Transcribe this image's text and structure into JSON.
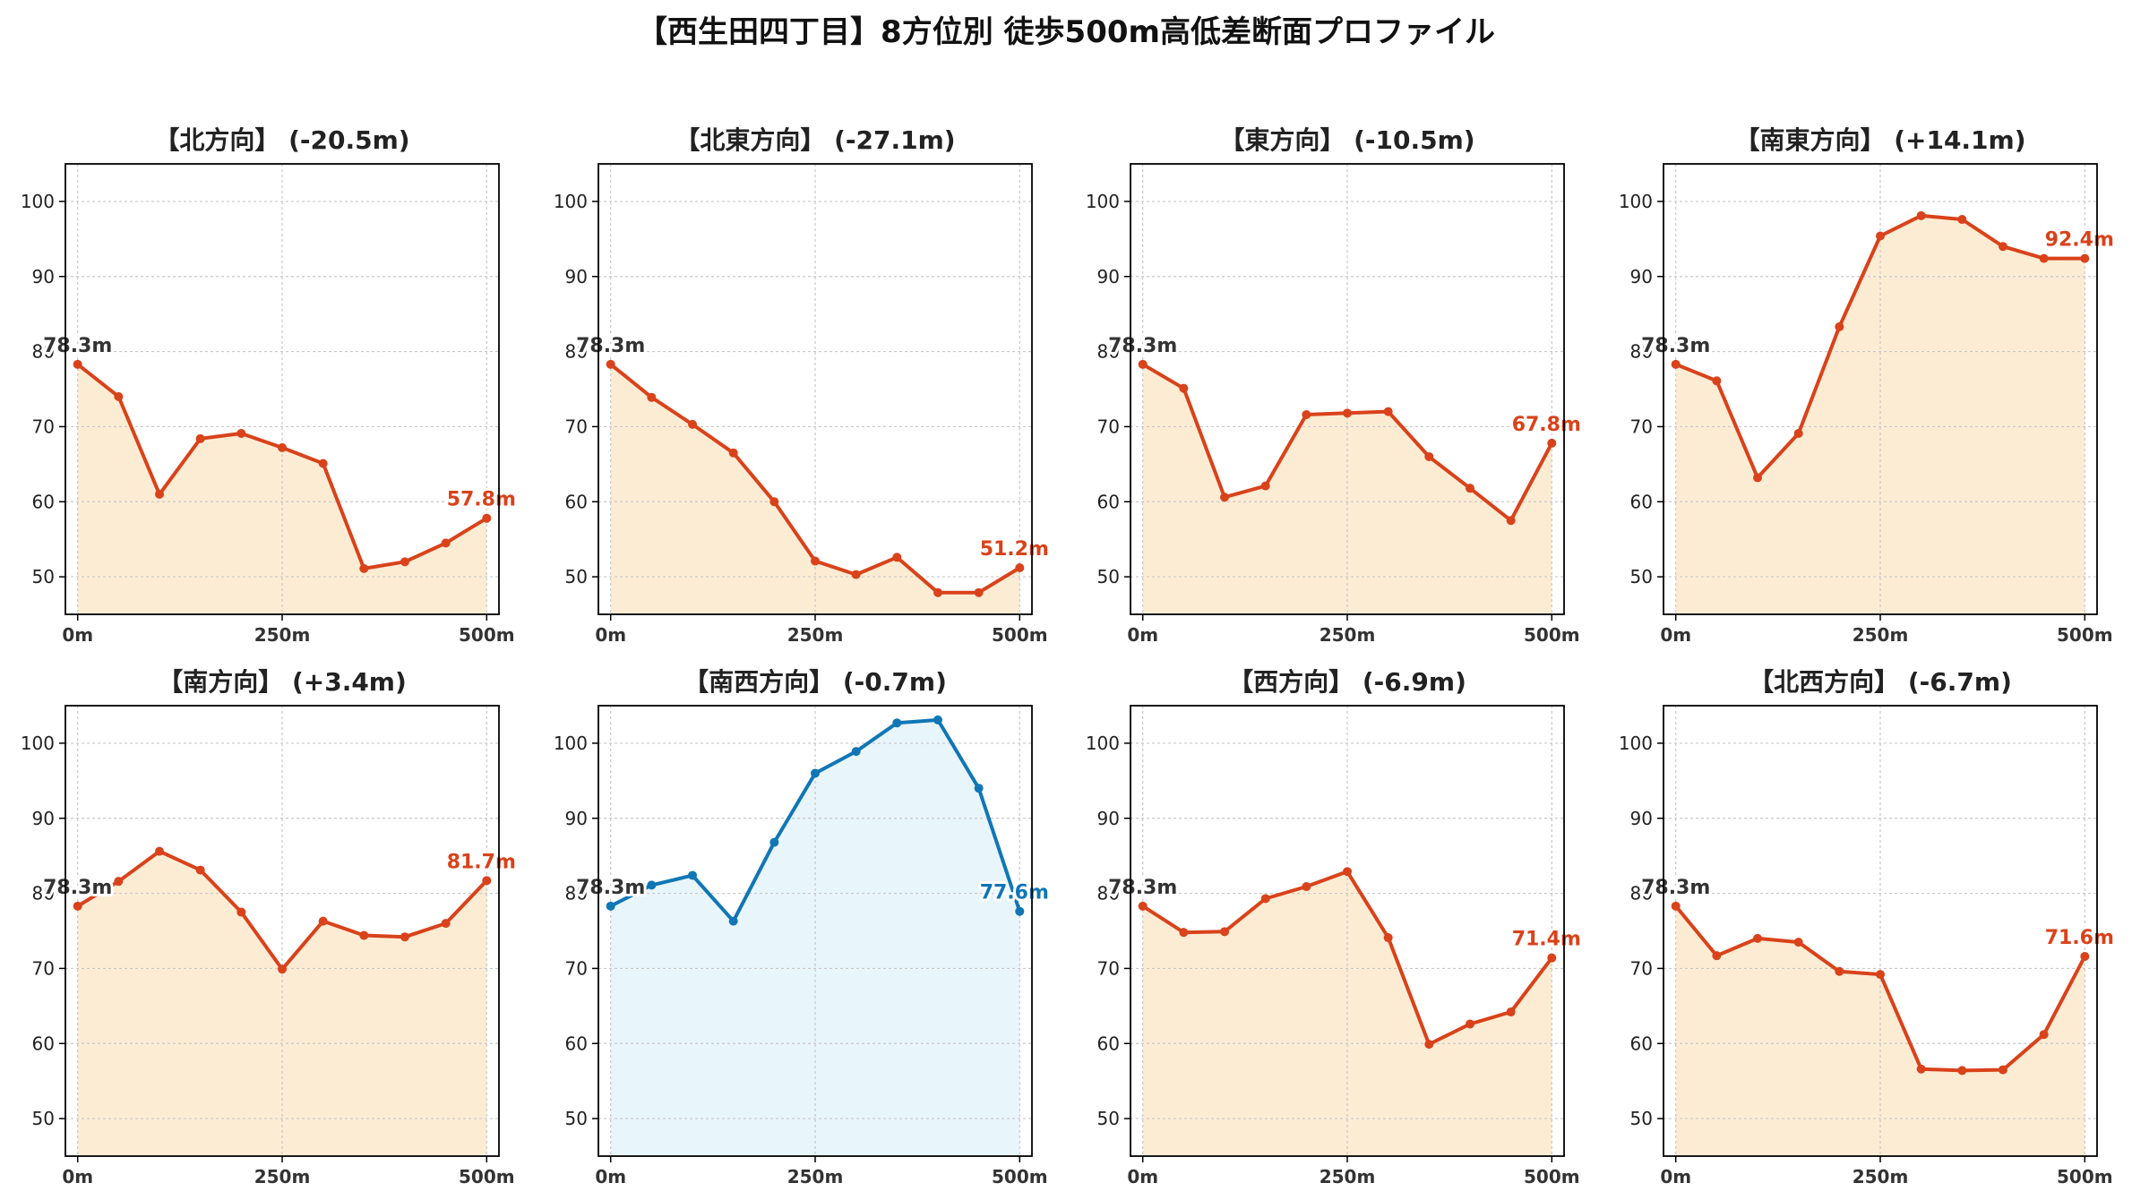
{
  "title": "【西生田四丁目】8方位別 徒歩500m高低差断面プロファイル",
  "colors": {
    "down_line": "#d9421a",
    "down_fill": "#fdecd4",
    "up_line": "#1076b6",
    "up_fill": "#e8f5fb",
    "start_label": "#333333",
    "grid": "#c8c8c8"
  },
  "chart_data": [
    {
      "type": "line",
      "title": "【北方向】 (-20.5m)",
      "x": [
        0,
        50,
        100,
        150,
        200,
        250,
        300,
        350,
        400,
        450,
        500
      ],
      "values": [
        78.3,
        74.0,
        61.0,
        68.4,
        69.1,
        67.2,
        65.1,
        51.1,
        52.0,
        54.5,
        57.8
      ],
      "start_label": "78.3m",
      "end_label": "57.8m",
      "xticks": [
        "0m",
        "250m",
        "500m"
      ],
      "yticks": [
        50,
        60,
        70,
        80,
        90,
        100
      ],
      "ylim": [
        45,
        105
      ],
      "xlim": [
        -15,
        515
      ],
      "grid": true,
      "style": "down"
    },
    {
      "type": "line",
      "title": "【北東方向】 (-27.1m)",
      "x": [
        0,
        50,
        100,
        150,
        200,
        250,
        300,
        350,
        400,
        450,
        500
      ],
      "values": [
        78.3,
        73.9,
        70.3,
        66.5,
        60.0,
        52.1,
        50.3,
        52.6,
        47.9,
        47.9,
        51.2
      ],
      "start_label": "78.3m",
      "end_label": "51.2m",
      "xticks": [
        "0m",
        "250m",
        "500m"
      ],
      "yticks": [
        50,
        60,
        70,
        80,
        90,
        100
      ],
      "ylim": [
        45,
        105
      ],
      "xlim": [
        -15,
        515
      ],
      "grid": true,
      "style": "down"
    },
    {
      "type": "line",
      "title": "【東方向】 (-10.5m)",
      "x": [
        0,
        50,
        100,
        150,
        200,
        250,
        300,
        350,
        400,
        450,
        500
      ],
      "values": [
        78.3,
        75.1,
        60.6,
        62.1,
        71.6,
        71.8,
        72.0,
        66.0,
        61.8,
        57.5,
        67.8
      ],
      "start_label": "78.3m",
      "end_label": "67.8m",
      "xticks": [
        "0m",
        "250m",
        "500m"
      ],
      "yticks": [
        50,
        60,
        70,
        80,
        90,
        100
      ],
      "ylim": [
        45,
        105
      ],
      "xlim": [
        -15,
        515
      ],
      "grid": true,
      "style": "down"
    },
    {
      "type": "line",
      "title": "【南東方向】 (+14.1m)",
      "x": [
        0,
        50,
        100,
        150,
        200,
        250,
        300,
        350,
        400,
        450,
        500
      ],
      "values": [
        78.3,
        76.1,
        63.2,
        69.1,
        83.3,
        95.4,
        98.1,
        97.6,
        94.0,
        92.4,
        92.4
      ],
      "start_label": "78.3m",
      "end_label": "92.4m",
      "xticks": [
        "0m",
        "250m",
        "500m"
      ],
      "yticks": [
        50,
        60,
        70,
        80,
        90,
        100
      ],
      "ylim": [
        45,
        105
      ],
      "xlim": [
        -15,
        515
      ],
      "grid": true,
      "style": "down"
    },
    {
      "type": "line",
      "title": "【南方向】 (+3.4m)",
      "x": [
        0,
        50,
        100,
        150,
        200,
        250,
        300,
        350,
        400,
        450,
        500
      ],
      "values": [
        78.3,
        81.6,
        85.6,
        83.1,
        77.5,
        69.9,
        76.3,
        74.4,
        74.2,
        76.0,
        81.7
      ],
      "start_label": "78.3m",
      "end_label": "81.7m",
      "xticks": [
        "0m",
        "250m",
        "500m"
      ],
      "yticks": [
        50,
        60,
        70,
        80,
        90,
        100
      ],
      "ylim": [
        45,
        105
      ],
      "xlim": [
        -15,
        515
      ],
      "grid": true,
      "style": "down"
    },
    {
      "type": "line",
      "title": "【南西方向】 (-0.7m)",
      "x": [
        0,
        50,
        100,
        150,
        200,
        250,
        300,
        350,
        400,
        450,
        500
      ],
      "values": [
        78.3,
        81.1,
        82.4,
        76.3,
        86.8,
        96.0,
        98.9,
        102.7,
        103.1,
        94.0,
        77.6
      ],
      "start_label": "78.3m",
      "end_label": "77.6m",
      "xticks": [
        "0m",
        "250m",
        "500m"
      ],
      "yticks": [
        50,
        60,
        70,
        80,
        90,
        100
      ],
      "ylim": [
        45,
        105
      ],
      "xlim": [
        -15,
        515
      ],
      "grid": true,
      "style": "up"
    },
    {
      "type": "line",
      "title": "【西方向】 (-6.9m)",
      "x": [
        0,
        50,
        100,
        150,
        200,
        250,
        300,
        350,
        400,
        450,
        500
      ],
      "values": [
        78.3,
        74.8,
        74.9,
        79.3,
        80.9,
        82.9,
        74.1,
        59.9,
        62.6,
        64.2,
        71.4
      ],
      "start_label": "78.3m",
      "end_label": "71.4m",
      "xticks": [
        "0m",
        "250m",
        "500m"
      ],
      "yticks": [
        50,
        60,
        70,
        80,
        90,
        100
      ],
      "ylim": [
        45,
        105
      ],
      "xlim": [
        -15,
        515
      ],
      "grid": true,
      "style": "down"
    },
    {
      "type": "line",
      "title": "【北西方向】 (-6.7m)",
      "x": [
        0,
        50,
        100,
        150,
        200,
        250,
        300,
        350,
        400,
        450,
        500
      ],
      "values": [
        78.3,
        71.7,
        74.0,
        73.5,
        69.6,
        69.2,
        56.6,
        56.4,
        56.5,
        61.2,
        71.6
      ],
      "start_label": "78.3m",
      "end_label": "71.6m",
      "xticks": [
        "0m",
        "250m",
        "500m"
      ],
      "yticks": [
        50,
        60,
        70,
        80,
        90,
        100
      ],
      "ylim": [
        45,
        105
      ],
      "xlim": [
        -15,
        515
      ],
      "grid": true,
      "style": "down"
    }
  ]
}
